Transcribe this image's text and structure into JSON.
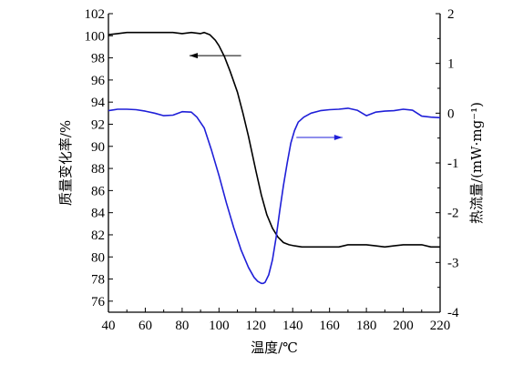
{
  "chart_data": {
    "type": "line",
    "title": "",
    "xlabel": "温度/℃",
    "ylabel_left": "质量变化率/%",
    "ylabel_right": "热流量/(mW·mg⁻¹)",
    "xlim": [
      40,
      220
    ],
    "ylim_left": [
      75,
      102
    ],
    "ylim_right": [
      -4,
      2
    ],
    "x_ticks": [
      "40",
      "60",
      "80",
      "100",
      "120",
      "140",
      "160",
      "180",
      "200",
      "220"
    ],
    "y_left_ticks": [
      "76",
      "78",
      "80",
      "82",
      "84",
      "86",
      "88",
      "90",
      "92",
      "94",
      "96",
      "98",
      "100",
      "102"
    ],
    "y_right_ticks": [
      "-4",
      "-3",
      "-2",
      "-1",
      "0",
      "1",
      "2"
    ],
    "grid": false,
    "legend": "none",
    "series": [
      {
        "axis": "left",
        "color": "#000000",
        "x": [
          40,
          45,
          50,
          55,
          60,
          65,
          70,
          75,
          80,
          85,
          90,
          92,
          95,
          98,
          100,
          103,
          106,
          110,
          113,
          116,
          120,
          123,
          126,
          129,
          132,
          135,
          138,
          141,
          145,
          150,
          155,
          160,
          165,
          170,
          175,
          180,
          185,
          190,
          195,
          200,
          205,
          210,
          215,
          220
        ],
        "y": [
          100.1,
          100.2,
          100.3,
          100.3,
          100.3,
          100.3,
          100.3,
          100.3,
          100.2,
          100.3,
          100.2,
          100.3,
          100.1,
          99.6,
          99.1,
          98.1,
          96.8,
          94.9,
          93.0,
          90.9,
          87.8,
          85.6,
          83.8,
          82.6,
          81.8,
          81.3,
          81.1,
          81.0,
          80.9,
          80.9,
          80.9,
          80.9,
          80.9,
          81.1,
          81.1,
          81.1,
          81.0,
          80.9,
          81.0,
          81.1,
          81.1,
          81.1,
          80.9,
          80.9
        ]
      },
      {
        "axis": "right",
        "color": "#1f1fd8",
        "x": [
          40,
          45,
          50,
          55,
          60,
          65,
          70,
          75,
          80,
          85,
          88,
          92,
          96,
          100,
          104,
          108,
          112,
          116,
          119,
          121,
          123,
          124,
          125,
          127,
          129,
          131,
          133,
          135,
          137,
          139,
          141,
          143,
          146,
          150,
          155,
          160,
          165,
          170,
          175,
          180,
          185,
          190,
          195,
          200,
          205,
          210,
          215,
          220
        ],
        "y": [
          0.05,
          0.08,
          0.08,
          0.07,
          0.04,
          0.0,
          -0.05,
          -0.04,
          0.03,
          0.02,
          -0.08,
          -0.3,
          -0.75,
          -1.25,
          -1.8,
          -2.3,
          -2.75,
          -3.1,
          -3.3,
          -3.38,
          -3.42,
          -3.42,
          -3.4,
          -3.25,
          -2.95,
          -2.5,
          -1.95,
          -1.45,
          -1.0,
          -0.6,
          -0.35,
          -0.18,
          -0.08,
          0.0,
          0.05,
          0.07,
          0.08,
          0.1,
          0.06,
          -0.05,
          0.02,
          0.04,
          0.05,
          0.08,
          0.06,
          -0.06,
          -0.08,
          -0.09
        ]
      }
    ],
    "annotations": [
      {
        "type": "arrow",
        "from": [
          112,
          98.2
        ],
        "to": [
          84,
          98.2
        ],
        "color": "#000000",
        "axis": "left"
      },
      {
        "type": "arrow",
        "from": [
          142,
          90.8
        ],
        "to": [
          167,
          90.8
        ],
        "color": "#1f1fd8",
        "axis": "left"
      }
    ]
  }
}
